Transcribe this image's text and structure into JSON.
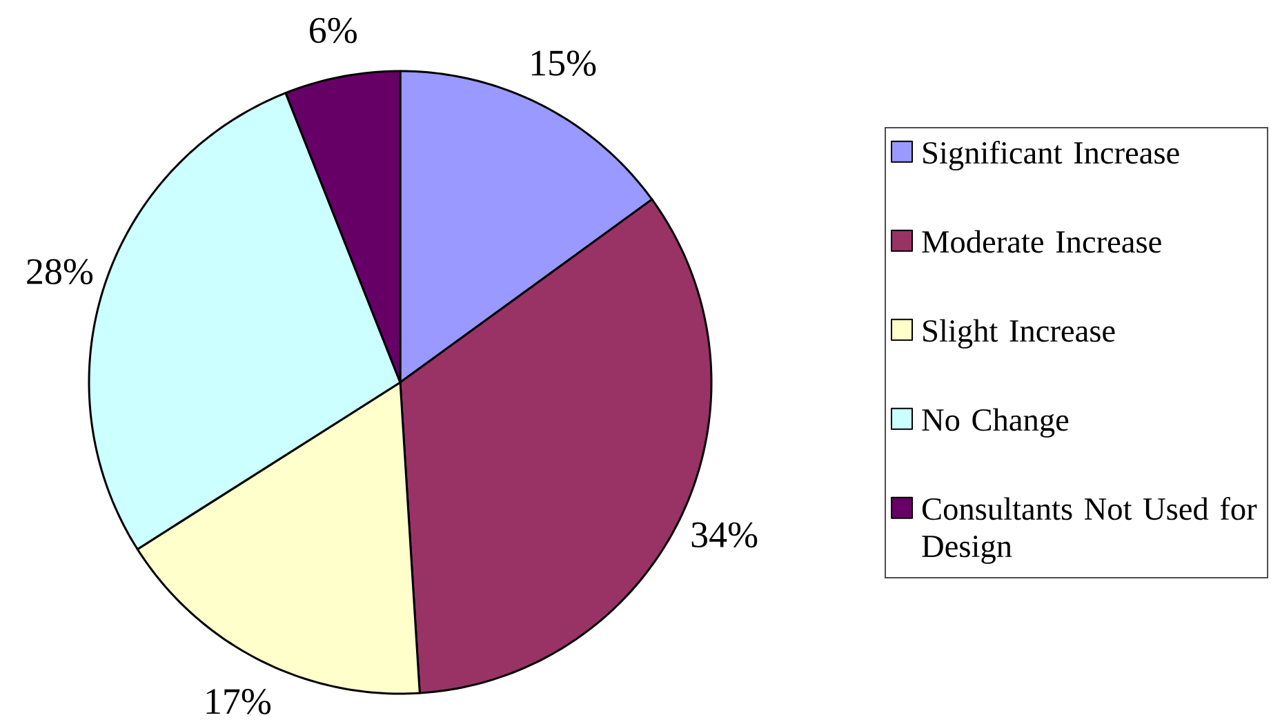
{
  "chart_data": {
    "type": "pie",
    "categories": [
      "Significant Increase",
      "Moderate Increase",
      "Slight Increase",
      "No Change",
      "Consultants Not Used for Design"
    ],
    "values": [
      15,
      34,
      17,
      28,
      6
    ],
    "colors": [
      "#9999ff",
      "#993366",
      "#ffffcc",
      "#ccffff",
      "#660066"
    ],
    "value_labels": [
      "15%",
      "34%",
      "17%",
      "28%",
      "6%"
    ],
    "legend": "right"
  }
}
